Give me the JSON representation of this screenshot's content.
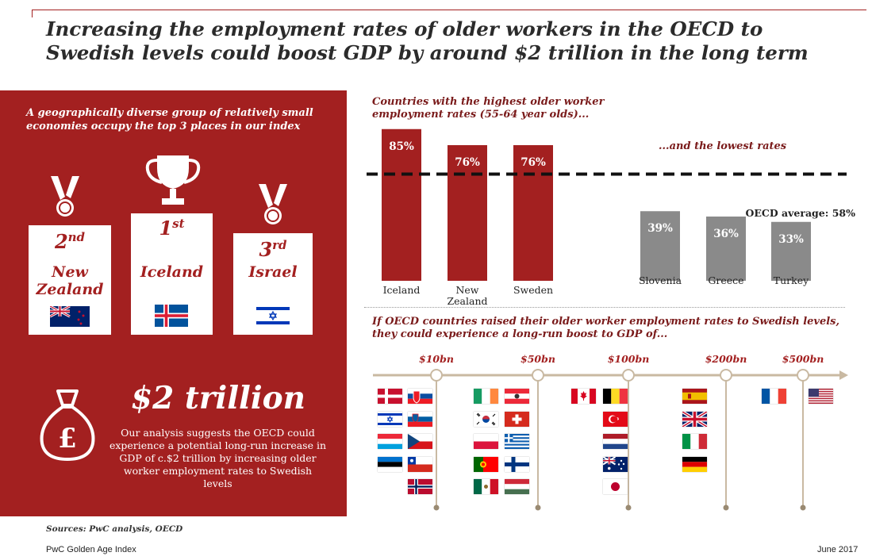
{
  "title": "Increasing the employment rates of older workers in the OECD to Swedish levels could boost GDP by around $2 trillion in the long term",
  "left_panel": {
    "subtitle": "A geographically diverse group of relatively small economies occupy the top 3 places in our index",
    "podium": [
      {
        "rank_num": "2",
        "rank_suffix": "nd",
        "country_lines": [
          "New",
          "Zealand"
        ],
        "flag": "new-zealand"
      },
      {
        "rank_num": "1",
        "rank_suffix": "st",
        "country_lines": [
          "Iceland"
        ],
        "flag": "iceland"
      },
      {
        "rank_num": "3",
        "rank_suffix": "rd",
        "country_lines": [
          "Israel"
        ],
        "flag": "israel"
      }
    ],
    "big_number": "$2 trillion",
    "body": "Our analysis suggests the OECD could experience a potential long-run increase in GDP of c.$2 trillion by increasing older worker employment rates to Swedish levels",
    "icons": [
      "medal-icon",
      "trophy-icon",
      "money-bag-icon"
    ]
  },
  "chart_data": [
    {
      "type": "bar",
      "title": "Countries with the highest older worker employment rates (55-64 year olds)...",
      "subtitle": "...and the lowest rates",
      "categories": [
        "Iceland",
        "New Zealand",
        "Sweden",
        "Slovenia",
        "Greece",
        "Turkey"
      ],
      "category_lines": [
        [
          "Iceland"
        ],
        [
          "New",
          "Zealand"
        ],
        [
          "Sweden"
        ],
        [
          "Slovenia"
        ],
        [
          "Greece"
        ],
        [
          "Turkey"
        ]
      ],
      "values": [
        85,
        76,
        76,
        39,
        36,
        33
      ],
      "value_labels": [
        "85%",
        "76%",
        "76%",
        "39%",
        "36%",
        "33%"
      ],
      "groups": [
        "highest",
        "highest",
        "highest",
        "lowest",
        "lowest",
        "lowest"
      ],
      "colors": {
        "highest": "#a32020",
        "lowest": "#8a8a8a"
      },
      "reference_line": {
        "value": 58,
        "label": "OECD average: 58%",
        "style": "dashed"
      },
      "ylim": [
        0,
        90
      ],
      "grid": false
    },
    {
      "type": "timeline",
      "title": "If OECD countries raised their older worker employment rates to Swedish levels, they could experience a long-run boost to GDP of...",
      "markers": [
        "$10bn",
        "$50bn",
        "$100bn",
        "$200bn",
        "$500bn"
      ],
      "groups": [
        {
          "marker": "$10bn",
          "flags": [
            "denmark",
            "slovakia",
            "israel",
            "slovenia",
            "luxembourg",
            "czech-republic",
            "estonia",
            "chile",
            "norway"
          ]
        },
        {
          "marker": "$50bn",
          "flags": [
            "ireland",
            "austria",
            "south-korea",
            "switzerland",
            "poland",
            "greece",
            "portugal",
            "finland",
            "mexico",
            "hungary"
          ]
        },
        {
          "marker": "$100bn",
          "flags": [
            "canada",
            "belgium",
            "turkey",
            "netherlands",
            "australia",
            "japan"
          ]
        },
        {
          "marker": "$200bn",
          "flags": [
            "spain",
            "united-kingdom",
            "italy",
            "germany"
          ]
        },
        {
          "marker": "$500bn",
          "flags": [
            "france",
            "united-states"
          ]
        }
      ]
    }
  ],
  "footer": {
    "sources": "Sources: PwC analysis, OECD",
    "brand": "PwC Golden Age Index",
    "date": "June 2017"
  }
}
